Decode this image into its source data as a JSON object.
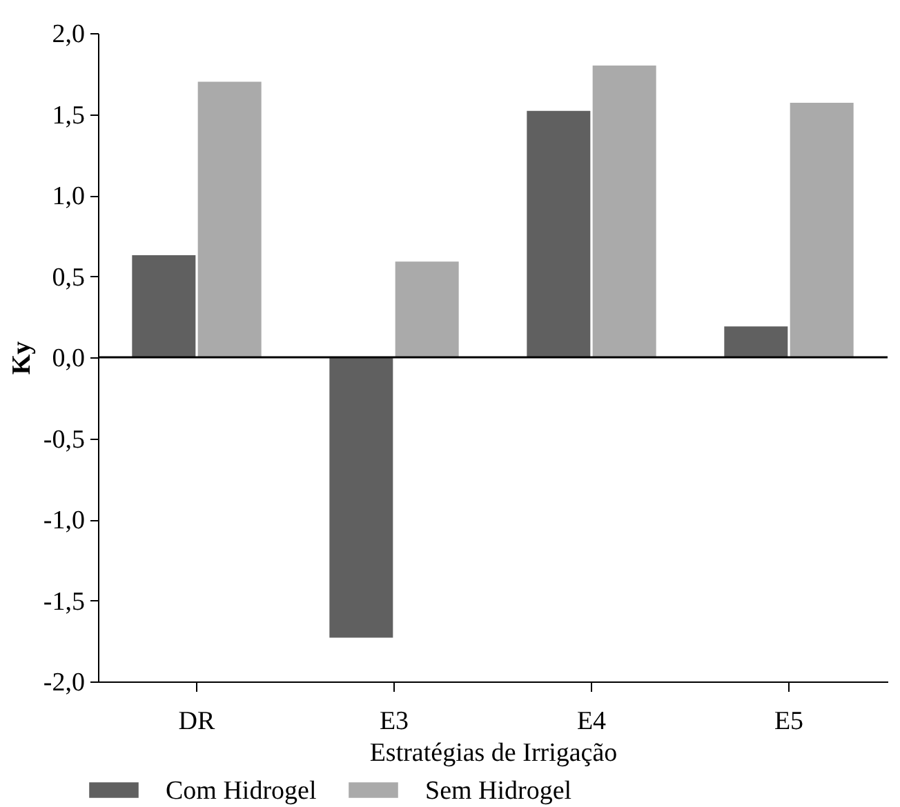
{
  "chart_data": {
    "type": "bar",
    "xlabel": "Estratégias de Irrigação",
    "ylabel": "Ky",
    "categories": [
      "DR",
      "E3",
      "E4",
      "E5"
    ],
    "series": [
      {
        "name": "Com Hidrogel",
        "color": "#606060",
        "values": [
          0.63,
          -1.73,
          1.52,
          0.19
        ]
      },
      {
        "name": "Sem Hidrogel",
        "color": "#aaaaaa",
        "values": [
          1.7,
          0.59,
          1.8,
          1.57
        ]
      }
    ],
    "ylim": [
      -2.0,
      2.0
    ],
    "yticks": [
      {
        "value": -2.0,
        "label": "-2,0"
      },
      {
        "value": -1.5,
        "label": "-1,5"
      },
      {
        "value": -1.0,
        "label": "-1,0"
      },
      {
        "value": -0.5,
        "label": "-0,5"
      },
      {
        "value": 0.0,
        "label": "0,0"
      },
      {
        "value": 0.5,
        "label": "0,5"
      },
      {
        "value": 1.0,
        "label": "1,0"
      },
      {
        "value": 1.5,
        "label": "1,5"
      },
      {
        "value": 2.0,
        "label": "2,0"
      }
    ],
    "ref_lines": [
      {
        "axis": "y",
        "value": 0.0,
        "color": "#000000"
      }
    ],
    "legend": "bottom",
    "grid": false
  }
}
